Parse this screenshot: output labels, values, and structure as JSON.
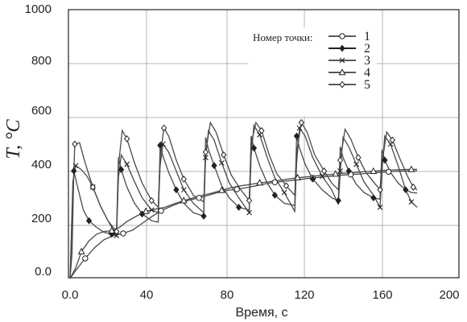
{
  "chart_data": {
    "type": "line",
    "title": "",
    "xlabel": "Время, с",
    "ylabel": "T, °C",
    "xlim": [
      0,
      200
    ],
    "ylim": [
      0,
      1000
    ],
    "x_ticks": [
      "0.0",
      "40",
      "80",
      "120",
      "160",
      "200"
    ],
    "y_ticks": [
      "0.0",
      "200",
      "400",
      "600",
      "800",
      "1000"
    ],
    "grid": true,
    "legend_title": "Номер точки:",
    "legend_position": "top-right",
    "series": [
      {
        "name": "1",
        "marker": "open-circle",
        "x": [
          0,
          3,
          8,
          13,
          18,
          23,
          28,
          33,
          38,
          43,
          48,
          53,
          58,
          63,
          68,
          73,
          78,
          83,
          88,
          93,
          98,
          103,
          108,
          113,
          118,
          123,
          128,
          133,
          138,
          143,
          148,
          153,
          158,
          163,
          168,
          173,
          178,
          183
        ],
        "y": [
          0,
          30,
          75,
          115,
          145,
          160,
          168,
          180,
          205,
          230,
          252,
          268,
          282,
          292,
          300,
          310,
          320,
          328,
          332,
          338,
          345,
          352,
          358,
          362,
          366,
          370,
          374,
          378,
          381,
          384,
          387,
          389,
          392,
          395,
          397,
          399,
          400,
          401
        ]
      },
      {
        "name": "2",
        "marker": "filled-diamond",
        "x": [
          0,
          1,
          2,
          4,
          7,
          10,
          14,
          18,
          22,
          24.5,
          25.5,
          27,
          30,
          34,
          38,
          43,
          46.5,
          47.5,
          49,
          52,
          56,
          60,
          65,
          70.5,
          71.5,
          73,
          76,
          80,
          84,
          89,
          94.5,
          95.5,
          97,
          100,
          104,
          108,
          113,
          118.5,
          119.5,
          121,
          124,
          128,
          133,
          138,
          141.5,
          142.5,
          144,
          147,
          151,
          155,
          160,
          163.5,
          164.5,
          166,
          169,
          173,
          177,
          180,
          183
        ],
        "y": [
          0,
          90,
          400,
          340,
          255,
          215,
          190,
          172,
          165,
          165,
          450,
          405,
          340,
          280,
          240,
          215,
          210,
          495,
          455,
          395,
          330,
          280,
          245,
          232,
          525,
          480,
          420,
          345,
          300,
          265,
          255,
          530,
          485,
          420,
          355,
          310,
          280,
          272,
          530,
          485,
          425,
          370,
          330,
          300,
          290,
          490,
          450,
          400,
          350,
          320,
          300,
          295,
          480,
          440,
          395,
          355,
          330,
          320,
          318
        ]
      },
      {
        "name": "3",
        "marker": "x-cross",
        "x": [
          0,
          1.5,
          3,
          6,
          9,
          12,
          16,
          20,
          24.5,
          25.5,
          27,
          30,
          34,
          38,
          43,
          46.5,
          47.5,
          49,
          52,
          56,
          60,
          65,
          70.5,
          71.5,
          73,
          76,
          80,
          84,
          89,
          94.5,
          95.5,
          97,
          100,
          104,
          108,
          113,
          118.5,
          119.5,
          121,
          124,
          128,
          133,
          138,
          141.5,
          142.5,
          144,
          147,
          151,
          155,
          160,
          163.5,
          164.5,
          166,
          169,
          173,
          177,
          180,
          183
        ],
        "y": [
          0,
          360,
          420,
          405,
          380,
          340,
          270,
          215,
          160,
          375,
          460,
          425,
          360,
          300,
          255,
          245,
          420,
          500,
          470,
          400,
          330,
          280,
          245,
          450,
          550,
          515,
          430,
          355,
          300,
          245,
          455,
          570,
          535,
          450,
          375,
          320,
          250,
          430,
          560,
          530,
          450,
          380,
          330,
          275,
          400,
          525,
          490,
          425,
          360,
          310,
          265,
          400,
          530,
          500,
          420,
          330,
          285,
          265
        ]
      },
      {
        "name": "4",
        "marker": "open-triangle",
        "x": [
          0,
          3,
          6,
          10,
          14,
          18,
          22,
          26,
          30,
          35,
          40,
          45,
          50,
          55,
          60,
          65,
          70,
          75,
          80,
          85,
          90,
          95,
          100,
          105,
          110,
          115,
          120,
          125,
          130,
          135,
          140,
          145,
          150,
          155,
          160,
          165,
          170,
          175,
          180,
          183
        ],
        "y": [
          0,
          40,
          100,
          140,
          165,
          175,
          178,
          190,
          212,
          232,
          250,
          258,
          265,
          278,
          290,
          300,
          310,
          318,
          328,
          338,
          345,
          350,
          356,
          360,
          365,
          370,
          375,
          378,
          382,
          386,
          389,
          392,
          394,
          397,
          399,
          402,
          404,
          405,
          406,
          406
        ]
      },
      {
        "name": "5",
        "marker": "open-diamond",
        "x": [
          0,
          1,
          2.5,
          5,
          8,
          12,
          16,
          20,
          24.5,
          25.5,
          27.5,
          30,
          34,
          38,
          43,
          46.5,
          47.5,
          49.5,
          52,
          56,
          60,
          65,
          70.5,
          71.5,
          74,
          77,
          81,
          85,
          90,
          94.5,
          95.5,
          98,
          101,
          105,
          109,
          114,
          118.5,
          119.5,
          122,
          125,
          129,
          134,
          138,
          141.5,
          142.5,
          145,
          148,
          152,
          156,
          160,
          163.5,
          164.5,
          167,
          170,
          174,
          178,
          181,
          183
        ],
        "y": [
          0,
          200,
          500,
          505,
          430,
          340,
          270,
          215,
          175,
          420,
          550,
          520,
          430,
          355,
          290,
          265,
          455,
          560,
          530,
          440,
          370,
          310,
          285,
          470,
          580,
          545,
          460,
          385,
          330,
          290,
          500,
          580,
          550,
          460,
          390,
          345,
          310,
          470,
          580,
          545,
          460,
          400,
          355,
          330,
          440,
          555,
          520,
          450,
          395,
          360,
          330,
          430,
          545,
          515,
          445,
          380,
          340,
          330
        ]
      }
    ]
  }
}
